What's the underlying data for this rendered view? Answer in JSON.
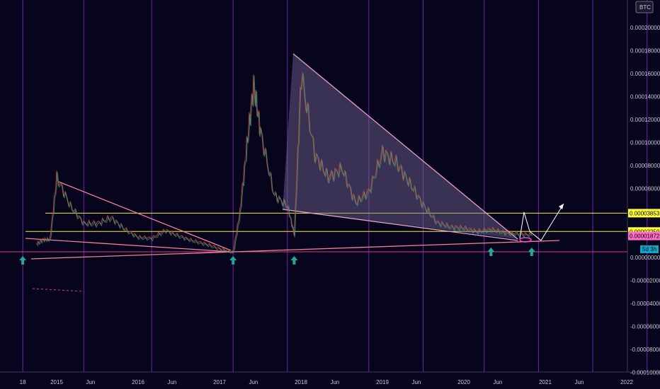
{
  "chart_data": {
    "type": "line",
    "title": "",
    "xlabel": "",
    "ylabel": "",
    "currency_badge": "BTC",
    "x_tick_labels": [
      "18",
      "2015",
      "Jun",
      "2016",
      "Jun",
      "2017",
      "Jun",
      "2018",
      "Jun",
      "2019",
      "Jun",
      "2020",
      "Jun",
      "2021",
      "Jun",
      "2022"
    ],
    "y_tick_labels": [
      "0.00020000",
      "0.00018000",
      "0.00016000",
      "0.00014000",
      "0.00012000",
      "0.00010000",
      "0.00008000",
      "0.00006000",
      "0.00002000",
      "0.00000000",
      "-0.00002000",
      "-0.00004000",
      "-0.00006000",
      "-0.00008000",
      "-0.00010000"
    ],
    "ylim": [
      -0.0001,
      0.0002
    ],
    "price_tags": [
      {
        "text": "0.00003853",
        "value": 3.853e-05,
        "color": "#ffff3c"
      },
      {
        "text": "0.00002259",
        "value": 2.259e-05,
        "color": "#ffff3c"
      },
      {
        "text": "0.00001872",
        "value": 1.872e-05,
        "color": "#ff6ec7"
      }
    ],
    "countdown_tag": "5d 3h",
    "horizontal_levels": [
      3.853e-05,
      2.259e-05
    ],
    "series": [
      {
        "x": [
          "2014-10",
          "2014-11",
          "2014-12",
          "2015-01",
          "2015-03",
          "2015-05",
          "2015-07",
          "2015-09",
          "2015-11",
          "2016-01",
          "2016-03",
          "2016-05",
          "2016-07",
          "2016-09",
          "2016-11",
          "2017-01",
          "2017-03",
          "2017-04",
          "2017-05",
          "2017-06",
          "2017-07",
          "2017-09",
          "2017-11",
          "2017-12",
          "2018-01",
          "2018-03",
          "2018-05",
          "2018-07",
          "2018-09",
          "2018-11",
          "2019-01",
          "2019-03",
          "2019-05",
          "2019-07",
          "2019-09",
          "2019-11",
          "2020-01",
          "2020-03",
          "2020-05",
          "2020-07",
          "2020-09",
          "2020-11"
        ],
        "values": [
          1.2e-05,
          1.6e-05,
          1.6e-05,
          7e-05,
          4.5e-05,
          3e-05,
          3e-05,
          3.5e-05,
          2.5e-05,
          1.8e-05,
          1.7e-05,
          2.4e-05,
          1.9e-05,
          1.5e-05,
          1.2e-05,
          8e-06,
          5e-06,
          4e-05,
          9.8e-05,
          0.00015,
          0.00011,
          5.5e-05,
          4.5e-05,
          2e-05,
          0.00016,
          9e-05,
          7e-05,
          7.8e-05,
          4.8e-05,
          5.8e-05,
          9.2e-05,
          8.3e-05,
          6.5e-05,
          4.6e-05,
          3.1e-05,
          2.7e-05,
          2.6e-05,
          2.3e-05,
          2.5e-05,
          2.2e-05,
          2.1e-05,
          2e-05
        ]
      }
    ],
    "markers": {
      "vertical_line_dates": [
        "2014-08",
        "2015-05",
        "2016-03",
        "2017-03",
        "2017-11",
        "2018-11",
        "2019-07",
        "2020-04",
        "2020-12",
        "2021-08",
        "2022-04"
      ],
      "up_arrow_dates": [
        "2014-08",
        "2017-03",
        "2017-12",
        "2020-05",
        "2020-11"
      ]
    }
  }
}
